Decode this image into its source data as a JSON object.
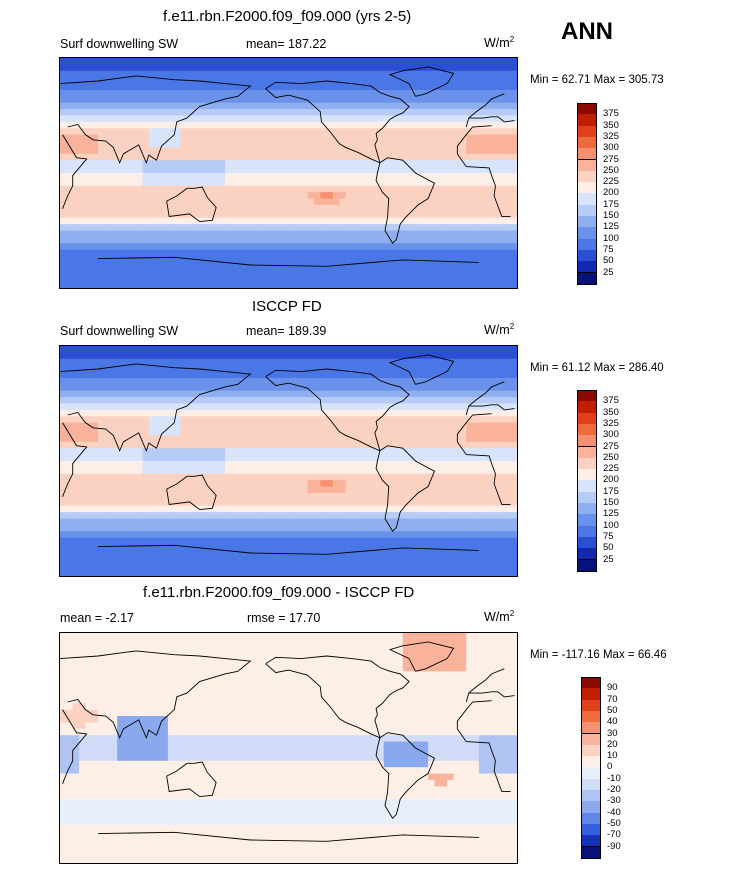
{
  "header": {
    "season": "ANN"
  },
  "panels": [
    {
      "title": "f.e11.rbn.F2000.f09_f09.000 (yrs 2-5)",
      "left_label": "Surf downwelling SW",
      "center_label": "mean= 187.22",
      "units": "W/m",
      "units_sup": "2",
      "minmax": "Min =  62.71 Max = 305.73",
      "colorbar": {
        "labels": [
          "375",
          "350",
          "325",
          "300",
          "275",
          "250",
          "225",
          "200",
          "175",
          "150",
          "125",
          "100",
          "75",
          "50",
          "25"
        ],
        "colors": [
          "#8b0a00",
          "#c21f00",
          "#e0401a",
          "#ef6a3c",
          "#f59070",
          "#f8b39a",
          "#fbd2c2",
          "#fdeee6",
          "#d8e4fb",
          "#b6ccf6",
          "#8fb0ef",
          "#6a92ea",
          "#4b76e6",
          "#2a4fd4",
          "#1129b0",
          "#08107a"
        ]
      },
      "field": "sw_model"
    },
    {
      "title": "ISCCP FD",
      "left_label": "Surf downwelling SW",
      "center_label": "mean= 189.39",
      "units": "W/m",
      "units_sup": "2",
      "minmax": "Min =  61.12 Max = 286.40",
      "colorbar": {
        "labels": [
          "375",
          "350",
          "325",
          "300",
          "275",
          "250",
          "225",
          "200",
          "175",
          "150",
          "125",
          "100",
          "75",
          "50",
          "25"
        ],
        "colors": [
          "#8b0a00",
          "#c21f00",
          "#e0401a",
          "#ef6a3c",
          "#f59070",
          "#f8b39a",
          "#fbd2c2",
          "#fdeee6",
          "#d8e4fb",
          "#b6ccf6",
          "#8fb0ef",
          "#6a92ea",
          "#4b76e6",
          "#2a4fd4",
          "#1129b0",
          "#08107a"
        ]
      },
      "field": "sw_obs"
    },
    {
      "title": "f.e11.rbn.F2000.f09_f09.000 - ISCCP FD",
      "left_label": "mean =  -2.17",
      "center_label": "rmse =  17.70",
      "units": "W/m",
      "units_sup": "2",
      "minmax": "Min = -117.16 Max =  66.46",
      "colorbar": {
        "labels": [
          "90",
          "70",
          "50",
          "40",
          "30",
          "20",
          "10",
          "0",
          "-10",
          "-20",
          "-30",
          "-40",
          "-50",
          "-70",
          "-90"
        ],
        "colors": [
          "#8b0a00",
          "#c21f00",
          "#e0401a",
          "#ef6a3c",
          "#f59070",
          "#f8b39a",
          "#fbd2c2",
          "#fdeee6",
          "#e8effc",
          "#d0dcf8",
          "#b0c4f3",
          "#8aa8ee",
          "#5f86e8",
          "#3560dc",
          "#1533b8",
          "#08107a"
        ]
      },
      "field": "diff"
    }
  ]
}
